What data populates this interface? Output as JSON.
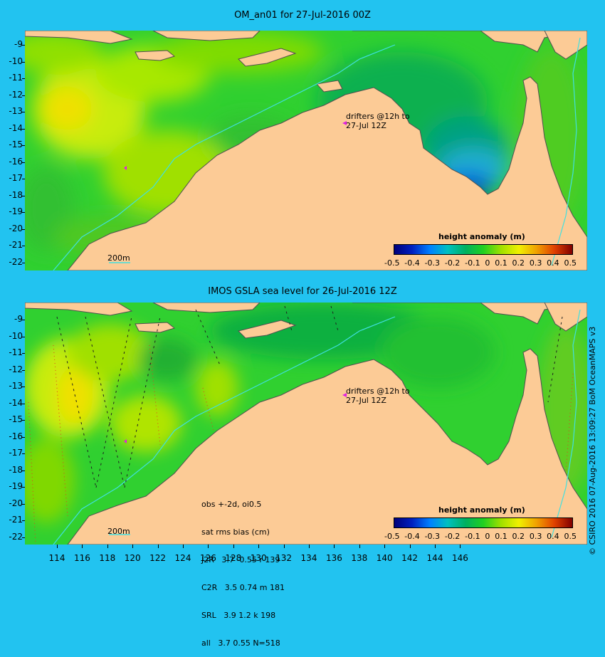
{
  "top_panel": {
    "title": "OM_an01 for 27-Jul-2016 00Z",
    "drifter_note_line1": "drifters @12h to",
    "drifter_note_line2": "27-Jul 12Z",
    "scale_label": "200m"
  },
  "bottom_panel": {
    "title": "IMOS GSLA sea level  for 26-Jul-2016 12Z",
    "drifter_note_line1": "drifters @12h to",
    "drifter_note_line2": "27-Jul 12Z",
    "scale_label": "200m",
    "stats": {
      "line1": "obs +-2d, oi0.5",
      "line2": "sat rms bias (cm)",
      "line3": "J2R   3.7 -0.55 r 139",
      "line4": "C2R   3.5 0.74 m 181",
      "line5": "SRL   3.9 1.2 k 198",
      "line6": "all   3.7 0.55 N=518"
    }
  },
  "legend": {
    "title": "height anomaly (m)",
    "ticks": [
      "-0.5",
      "-0.4",
      "-0.3",
      "-0.2",
      "-0.1",
      "0",
      "0.1",
      "0.2",
      "0.3",
      "0.4",
      "0.5"
    ],
    "colors": [
      "#00007a",
      "#0020c0",
      "#0080ff",
      "#00c0c0",
      "#00b060",
      "#20d020",
      "#a0e000",
      "#f0f000",
      "#f0a000",
      "#e04000",
      "#800000"
    ]
  },
  "axes": {
    "y_ticks_top": [
      "-9",
      "-10",
      "-11",
      "-12",
      "-13",
      "-14",
      "-15",
      "-16",
      "-17",
      "-18",
      "-19",
      "-20",
      "-21",
      "-22"
    ],
    "y_ticks_bottom": [
      "-9",
      "-10",
      "-11",
      "-12",
      "-13",
      "-14",
      "-15",
      "-16",
      "-17",
      "-18",
      "-19",
      "-20",
      "-21",
      "-22"
    ],
    "x_ticks": [
      "114",
      "116",
      "118",
      "120",
      "122",
      "124",
      "126",
      "128",
      "130",
      "132",
      "134",
      "136",
      "138",
      "140",
      "142",
      "144",
      "146"
    ]
  },
  "credit": "© CSIRO 2016  07-Aug-2016 13:09:27 BoM OceanMAPS v3",
  "colors": {
    "background": "#22c3f0",
    "land": "#fccb96",
    "ocean_base": "#30d030",
    "drifter_marker": "#e020e0",
    "isobath": "#40e0e0"
  }
}
